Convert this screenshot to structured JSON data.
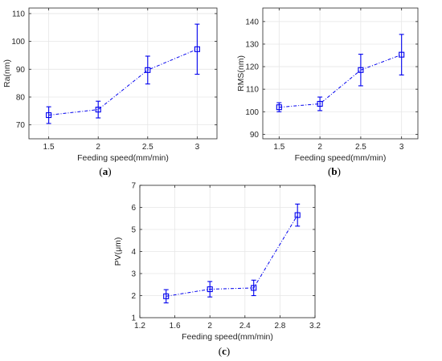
{
  "colors": {
    "series": "#0000ee",
    "axis": "#262626",
    "grid": "#e6e6e6"
  },
  "chart_data": [
    {
      "id": "a",
      "type": "line",
      "caption": "a",
      "xlabel": "Feeding speed(mm/min)",
      "ylabel": "Ra(nm)",
      "xlim": [
        1.3,
        3.2
      ],
      "ylim": [
        65,
        112
      ],
      "xticks": [
        1.5,
        2,
        2.5,
        3
      ],
      "xtick_labels": [
        "1.5",
        "2",
        "2.5",
        "3"
      ],
      "yticks": [
        70,
        80,
        90,
        100,
        110
      ],
      "ytick_labels": [
        "70",
        "80",
        "90",
        "100",
        "110"
      ],
      "grid": true,
      "marker": "square",
      "line_style": "dash-dot",
      "x": [
        1.5,
        2,
        2.5,
        3
      ],
      "y": [
        73.5,
        75.5,
        89.7,
        97.2
      ],
      "err_low": [
        3.0,
        3.0,
        5.0,
        9.0
      ],
      "err_high": [
        3.0,
        3.0,
        5.0,
        9.0
      ]
    },
    {
      "id": "b",
      "type": "line",
      "caption": "b",
      "xlabel": "Feeding speed(mm/min)",
      "ylabel": "RMS(nm)",
      "xlim": [
        1.3,
        3.2
      ],
      "ylim": [
        88,
        146
      ],
      "xticks": [
        1.5,
        2,
        2.5,
        3
      ],
      "xtick_labels": [
        "1.5",
        "2",
        "2.5",
        "3"
      ],
      "yticks": [
        90,
        100,
        110,
        120,
        130,
        140
      ],
      "ytick_labels": [
        "90",
        "100",
        "110",
        "120",
        "130",
        "140"
      ],
      "grid": true,
      "marker": "square",
      "line_style": "dash-dot",
      "x": [
        1.5,
        2,
        2.5,
        3
      ],
      "y": [
        102.0,
        103.5,
        118.5,
        125.3
      ],
      "err_low": [
        2.0,
        3.0,
        7.0,
        9.0
      ],
      "err_high": [
        2.0,
        3.0,
        7.0,
        9.0
      ]
    },
    {
      "id": "c",
      "type": "line",
      "caption": "c",
      "xlabel": "Feeding speed(mm/min)",
      "ylabel": "PV(μm)",
      "xlim": [
        1.2,
        3.2
      ],
      "ylim": [
        1,
        7
      ],
      "xticks": [
        1.2,
        1.6,
        2,
        2.4,
        2.8,
        3.2
      ],
      "xtick_labels": [
        "1.2",
        "1.6",
        "2",
        "2.4",
        "2.8",
        "3.2"
      ],
      "yticks": [
        1,
        2,
        3,
        4,
        5,
        6,
        7
      ],
      "ytick_labels": [
        "1",
        "2",
        "3",
        "4",
        "5",
        "6",
        "7"
      ],
      "grid": true,
      "marker": "square",
      "line_style": "dash-dot",
      "x": [
        1.5,
        2,
        2.5,
        3
      ],
      "y": [
        1.97,
        2.29,
        2.35,
        5.65
      ],
      "err_low": [
        0.3,
        0.35,
        0.35,
        0.5
      ],
      "err_high": [
        0.3,
        0.35,
        0.35,
        0.5
      ]
    }
  ]
}
